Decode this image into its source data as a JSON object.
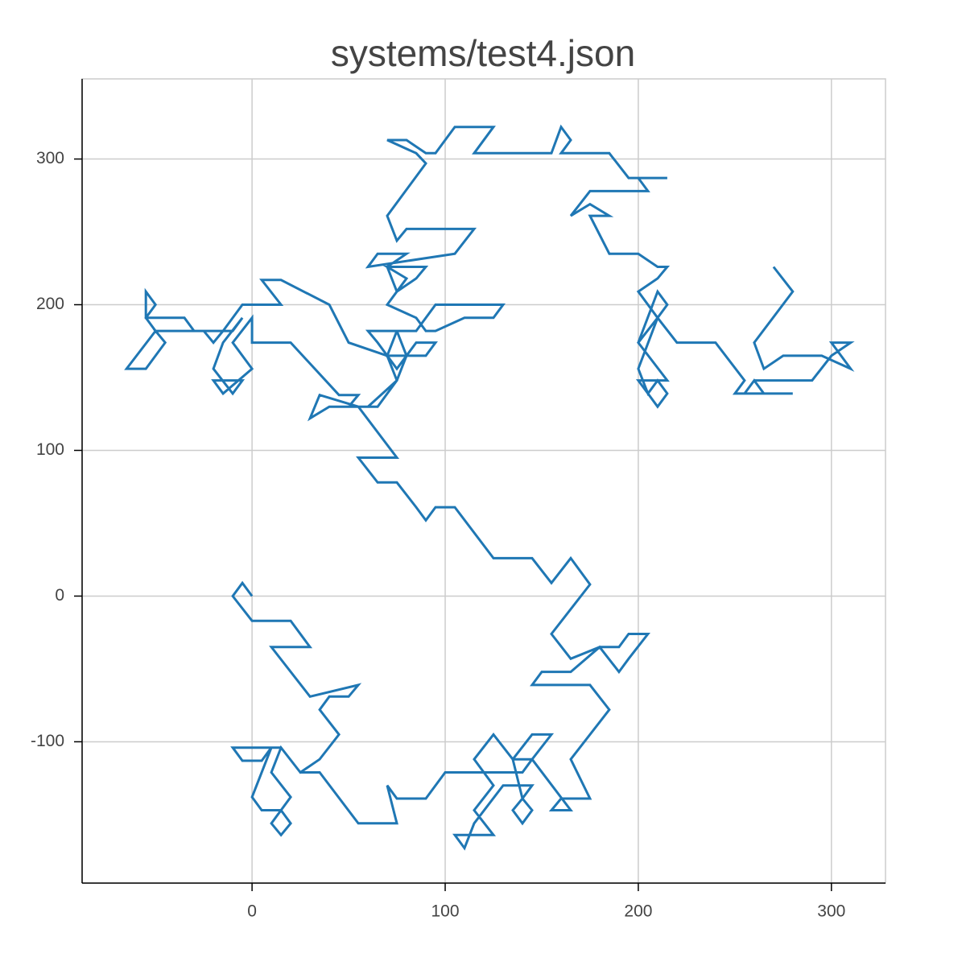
{
  "chart_data": {
    "type": "line",
    "title": "systems/test4.json",
    "color": "#1f77b4",
    "grid": true,
    "xlim": [
      -88,
      328
    ],
    "ylim": [
      -197,
      355
    ],
    "xticks": [
      0,
      100,
      200,
      300
    ],
    "yticks": [
      -100,
      0,
      100,
      200,
      300
    ],
    "x": [
      0,
      -5,
      -10,
      0,
      20,
      30,
      10,
      30,
      55,
      50,
      40,
      35,
      45,
      35,
      25,
      15,
      -10,
      -5,
      5,
      10,
      0,
      5,
      15,
      20,
      15,
      10,
      20,
      10,
      15,
      25,
      35,
      55,
      75,
      70,
      75,
      90,
      100,
      140,
      145,
      135,
      125,
      115,
      125,
      115,
      125,
      105,
      110,
      115,
      130,
      145,
      140,
      145,
      140,
      135,
      140,
      135,
      145,
      155,
      145,
      165,
      155,
      160,
      175,
      165,
      185,
      175,
      145,
      150,
      165,
      180,
      190,
      195,
      205,
      195,
      190,
      180,
      165,
      155,
      175,
      165,
      155,
      145,
      125,
      105,
      95,
      90,
      85,
      75,
      65,
      55,
      75,
      55,
      35,
      30,
      40,
      60,
      75,
      70,
      50,
      40,
      15,
      5,
      15,
      -5,
      -15,
      -20,
      -25,
      -50,
      -45,
      -55,
      -65,
      -50,
      -55,
      -50,
      -55,
      -55,
      -35,
      -30,
      -10,
      -5,
      -15,
      -20,
      -10,
      -5,
      -20,
      -15,
      0,
      -10,
      0,
      0,
      20,
      45,
      55,
      50,
      65,
      75,
      80,
      75,
      60,
      65,
      75,
      85,
      95,
      90,
      70,
      75,
      85,
      95,
      130,
      125,
      110,
      95,
      90,
      85,
      70,
      75,
      80,
      70,
      90,
      85,
      75,
      70,
      80,
      65,
      60,
      105,
      115,
      110,
      100,
      80,
      75,
      70,
      90,
      85,
      70,
      80,
      90,
      95,
      105,
      125,
      115,
      155,
      160,
      165,
      160,
      185,
      195,
      215,
      200,
      205,
      175,
      165,
      175,
      185,
      175,
      185,
      200,
      210,
      215,
      210,
      200,
      210,
      215,
      210,
      200,
      210,
      200,
      205,
      210,
      215,
      210,
      205,
      200,
      215,
      200,
      210,
      220,
      240,
      255,
      250,
      270,
      280,
      265,
      260,
      255,
      260,
      290,
      300,
      310,
      300,
      310,
      295,
      275,
      265,
      260,
      280,
      270
    ],
    "values": [
      0,
      9,
      0,
      -17,
      -17,
      -35,
      -35,
      -69,
      -61,
      -69,
      -69,
      -78,
      -95,
      -112,
      -121,
      -104,
      -104,
      -113,
      -113,
      -104,
      -138,
      -147,
      -147,
      -156,
      -164,
      -156,
      -138,
      -121,
      -104,
      -121,
      -121,
      -156,
      -156,
      -130,
      -139,
      -139,
      -121,
      -121,
      -112,
      -112,
      -95,
      -112,
      -130,
      -147,
      -164,
      -164,
      -173,
      -156,
      -130,
      -130,
      -139,
      -147,
      -156,
      -147,
      -139,
      -112,
      -95,
      -95,
      -112,
      -147,
      -147,
      -139,
      -139,
      -112,
      -78,
      -61,
      -61,
      -52,
      -52,
      -35,
      -52,
      -43,
      -26,
      -26,
      -35,
      -35,
      -43,
      -26,
      8,
      26,
      9,
      26,
      26,
      61,
      61,
      52,
      61,
      78,
      78,
      95,
      95,
      130,
      138,
      122,
      130,
      130,
      148,
      165,
      174,
      200,
      217,
      217,
      200,
      200,
      182,
      174,
      182,
      182,
      174,
      156,
      156,
      182,
      191,
      200,
      209,
      191,
      191,
      182,
      182,
      191,
      174,
      156,
      139,
      148,
      148,
      139,
      156,
      174,
      191,
      174,
      174,
      138,
      138,
      130,
      130,
      148,
      165,
      182,
      182,
      174,
      156,
      174,
      174,
      165,
      165,
      182,
      182,
      200,
      200,
      191,
      191,
      182,
      182,
      191,
      200,
      209,
      218,
      226,
      226,
      218,
      209,
      226,
      235,
      235,
      226,
      235,
      252,
      252,
      252,
      252,
      244,
      261,
      297,
      304,
      313,
      313,
      304,
      304,
      322,
      322,
      304,
      304,
      322,
      313,
      304,
      304,
      287,
      287,
      287,
      278,
      278,
      261,
      269,
      261,
      261,
      235,
      235,
      226,
      226,
      218,
      209,
      191,
      200,
      209,
      174,
      191,
      156,
      139,
      148,
      139,
      130,
      139,
      148,
      148,
      174,
      191,
      174,
      174,
      148,
      139,
      139,
      139,
      139,
      148,
      139,
      148,
      148,
      165,
      174,
      174,
      156,
      165,
      165,
      156,
      174,
      209,
      226
    ]
  }
}
